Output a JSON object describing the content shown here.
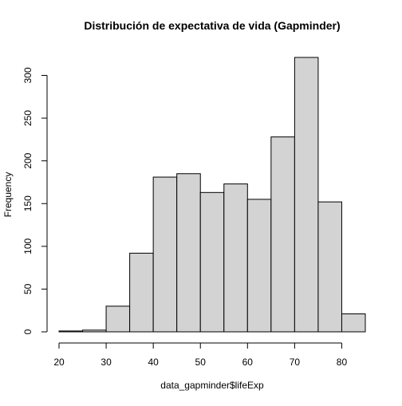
{
  "chart_data": {
    "type": "bar",
    "title": "Distribución de expectativa de vida (Gapminder)",
    "xlabel": "data_gapminder$lifeExp",
    "ylabel": "Frequency",
    "bin_edges": [
      20,
      25,
      30,
      35,
      40,
      45,
      50,
      55,
      60,
      65,
      70,
      75,
      80,
      85
    ],
    "values": [
      1,
      2,
      30,
      92,
      181,
      185,
      163,
      173,
      155,
      228,
      321,
      152,
      21
    ],
    "xlim": [
      20,
      85
    ],
    "ylim": [
      0,
      321
    ],
    "x_ticks": [
      20,
      30,
      40,
      50,
      60,
      70,
      80
    ],
    "y_ticks": [
      0,
      50,
      100,
      150,
      200,
      250,
      300
    ],
    "bar_fill": "#d3d3d3",
    "bar_stroke": "#000000",
    "grid": false,
    "legend": "none"
  }
}
